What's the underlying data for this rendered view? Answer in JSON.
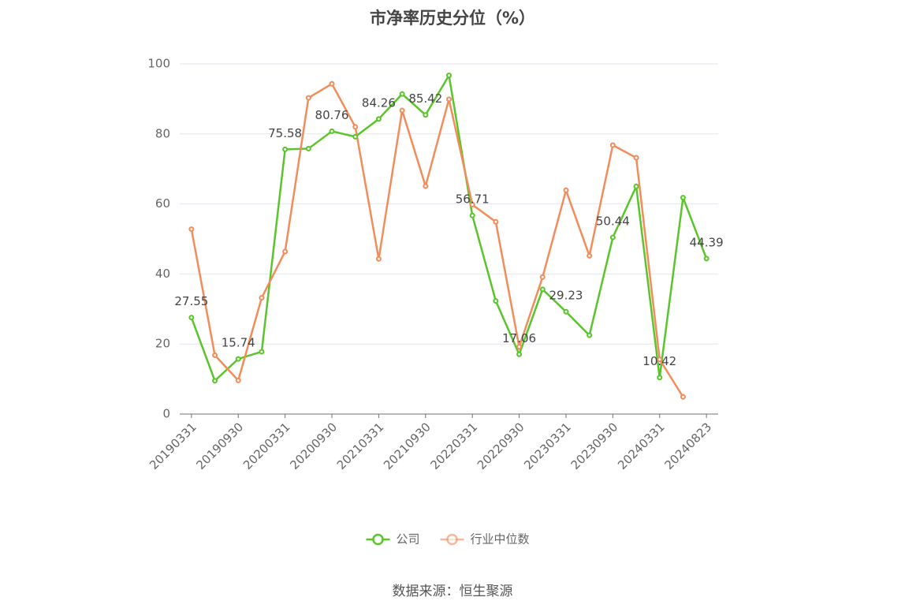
{
  "chart_data": {
    "type": "line",
    "title": "市净率历史分位（%）",
    "source": "数据来源：恒生聚源",
    "categories": [
      "20190331",
      null,
      "20190930",
      null,
      "20200331",
      null,
      "20200930",
      null,
      "20210331",
      null,
      "20210930",
      null,
      "20220331",
      null,
      "20220930",
      null,
      "20230331",
      null,
      "20230930",
      null,
      "20240331",
      null,
      "20240823"
    ],
    "series": [
      {
        "name": "公司",
        "color": "#5ac52a",
        "values": [
          27.55,
          9.5,
          15.74,
          17.8,
          75.58,
          75.8,
          80.76,
          79.2,
          84.26,
          91.4,
          85.42,
          96.7,
          56.71,
          32.3,
          17.06,
          35.6,
          29.23,
          22.5,
          50.44,
          65.0,
          10.42,
          61.8,
          44.39
        ],
        "value_labels": [
          "27.55",
          null,
          "15.74",
          null,
          "75.58",
          null,
          "80.76",
          null,
          "84.26",
          null,
          "85.42",
          null,
          "56.71",
          null,
          "17.06",
          null,
          "29.23",
          null,
          "50.44",
          null,
          "10.42",
          null,
          "44.39"
        ]
      },
      {
        "name": "行业中位数",
        "color": "#f28c5a",
        "values": [
          52.8,
          16.8,
          9.6,
          33.2,
          46.4,
          90.3,
          94.3,
          82.0,
          44.3,
          86.7,
          65.1,
          89.9,
          59.8,
          54.9,
          19.2,
          39.1,
          63.9,
          45.2,
          76.8,
          73.2,
          15.6,
          4.9,
          null
        ]
      }
    ],
    "ylim": [
      0,
      100
    ],
    "yticks": [
      0,
      20,
      40,
      60,
      80,
      100
    ],
    "grid": true,
    "legend": "bottom"
  }
}
